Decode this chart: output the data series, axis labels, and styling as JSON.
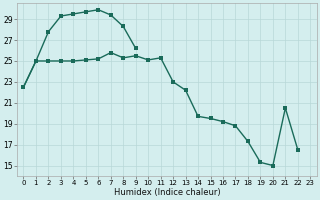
{
  "xlabel": "Humidex (Indice chaleur)",
  "ylabel": "",
  "background_color": "#d4eeee",
  "grid_color": "#b8d8d8",
  "line_color": "#1a6b5a",
  "xlim": [
    -0.5,
    23.5
  ],
  "ylim": [
    14.0,
    30.5
  ],
  "xticks": [
    0,
    1,
    2,
    3,
    4,
    5,
    6,
    7,
    8,
    9,
    10,
    11,
    12,
    13,
    14,
    15,
    16,
    17,
    18,
    19,
    20,
    21,
    22,
    23
  ],
  "yticks": [
    15,
    17,
    19,
    21,
    23,
    25,
    27,
    29
  ],
  "curve1_x": [
    0,
    1,
    2,
    3,
    4,
    5,
    6,
    7,
    8,
    9
  ],
  "curve1_y": [
    22.5,
    25.0,
    27.8,
    29.3,
    29.5,
    29.7,
    29.9,
    29.4,
    28.3,
    26.2
  ],
  "curve2_x": [
    0,
    1,
    2,
    3,
    4,
    5,
    6,
    7,
    8,
    9,
    10,
    11,
    12,
    13,
    14,
    15,
    16,
    17,
    18,
    19,
    20,
    21,
    22
  ],
  "curve2_y": [
    22.5,
    25.0,
    25.0,
    25.0,
    25.0,
    25.1,
    25.2,
    25.8,
    25.3,
    25.5,
    25.1,
    25.3,
    23.0,
    22.2,
    19.7,
    19.5,
    19.2,
    18.8,
    17.3,
    15.3,
    15.0,
    20.5,
    16.5
  ],
  "curve3_x": [
    9,
    10,
    11,
    12,
    13,
    14,
    15,
    16,
    17,
    18,
    19,
    20,
    21,
    22
  ],
  "curve3_y": [
    26.2,
    25.5,
    25.3,
    23.0,
    22.2,
    19.7,
    19.5,
    19.2,
    18.8,
    17.3,
    15.3,
    15.0,
    20.5,
    16.5
  ]
}
